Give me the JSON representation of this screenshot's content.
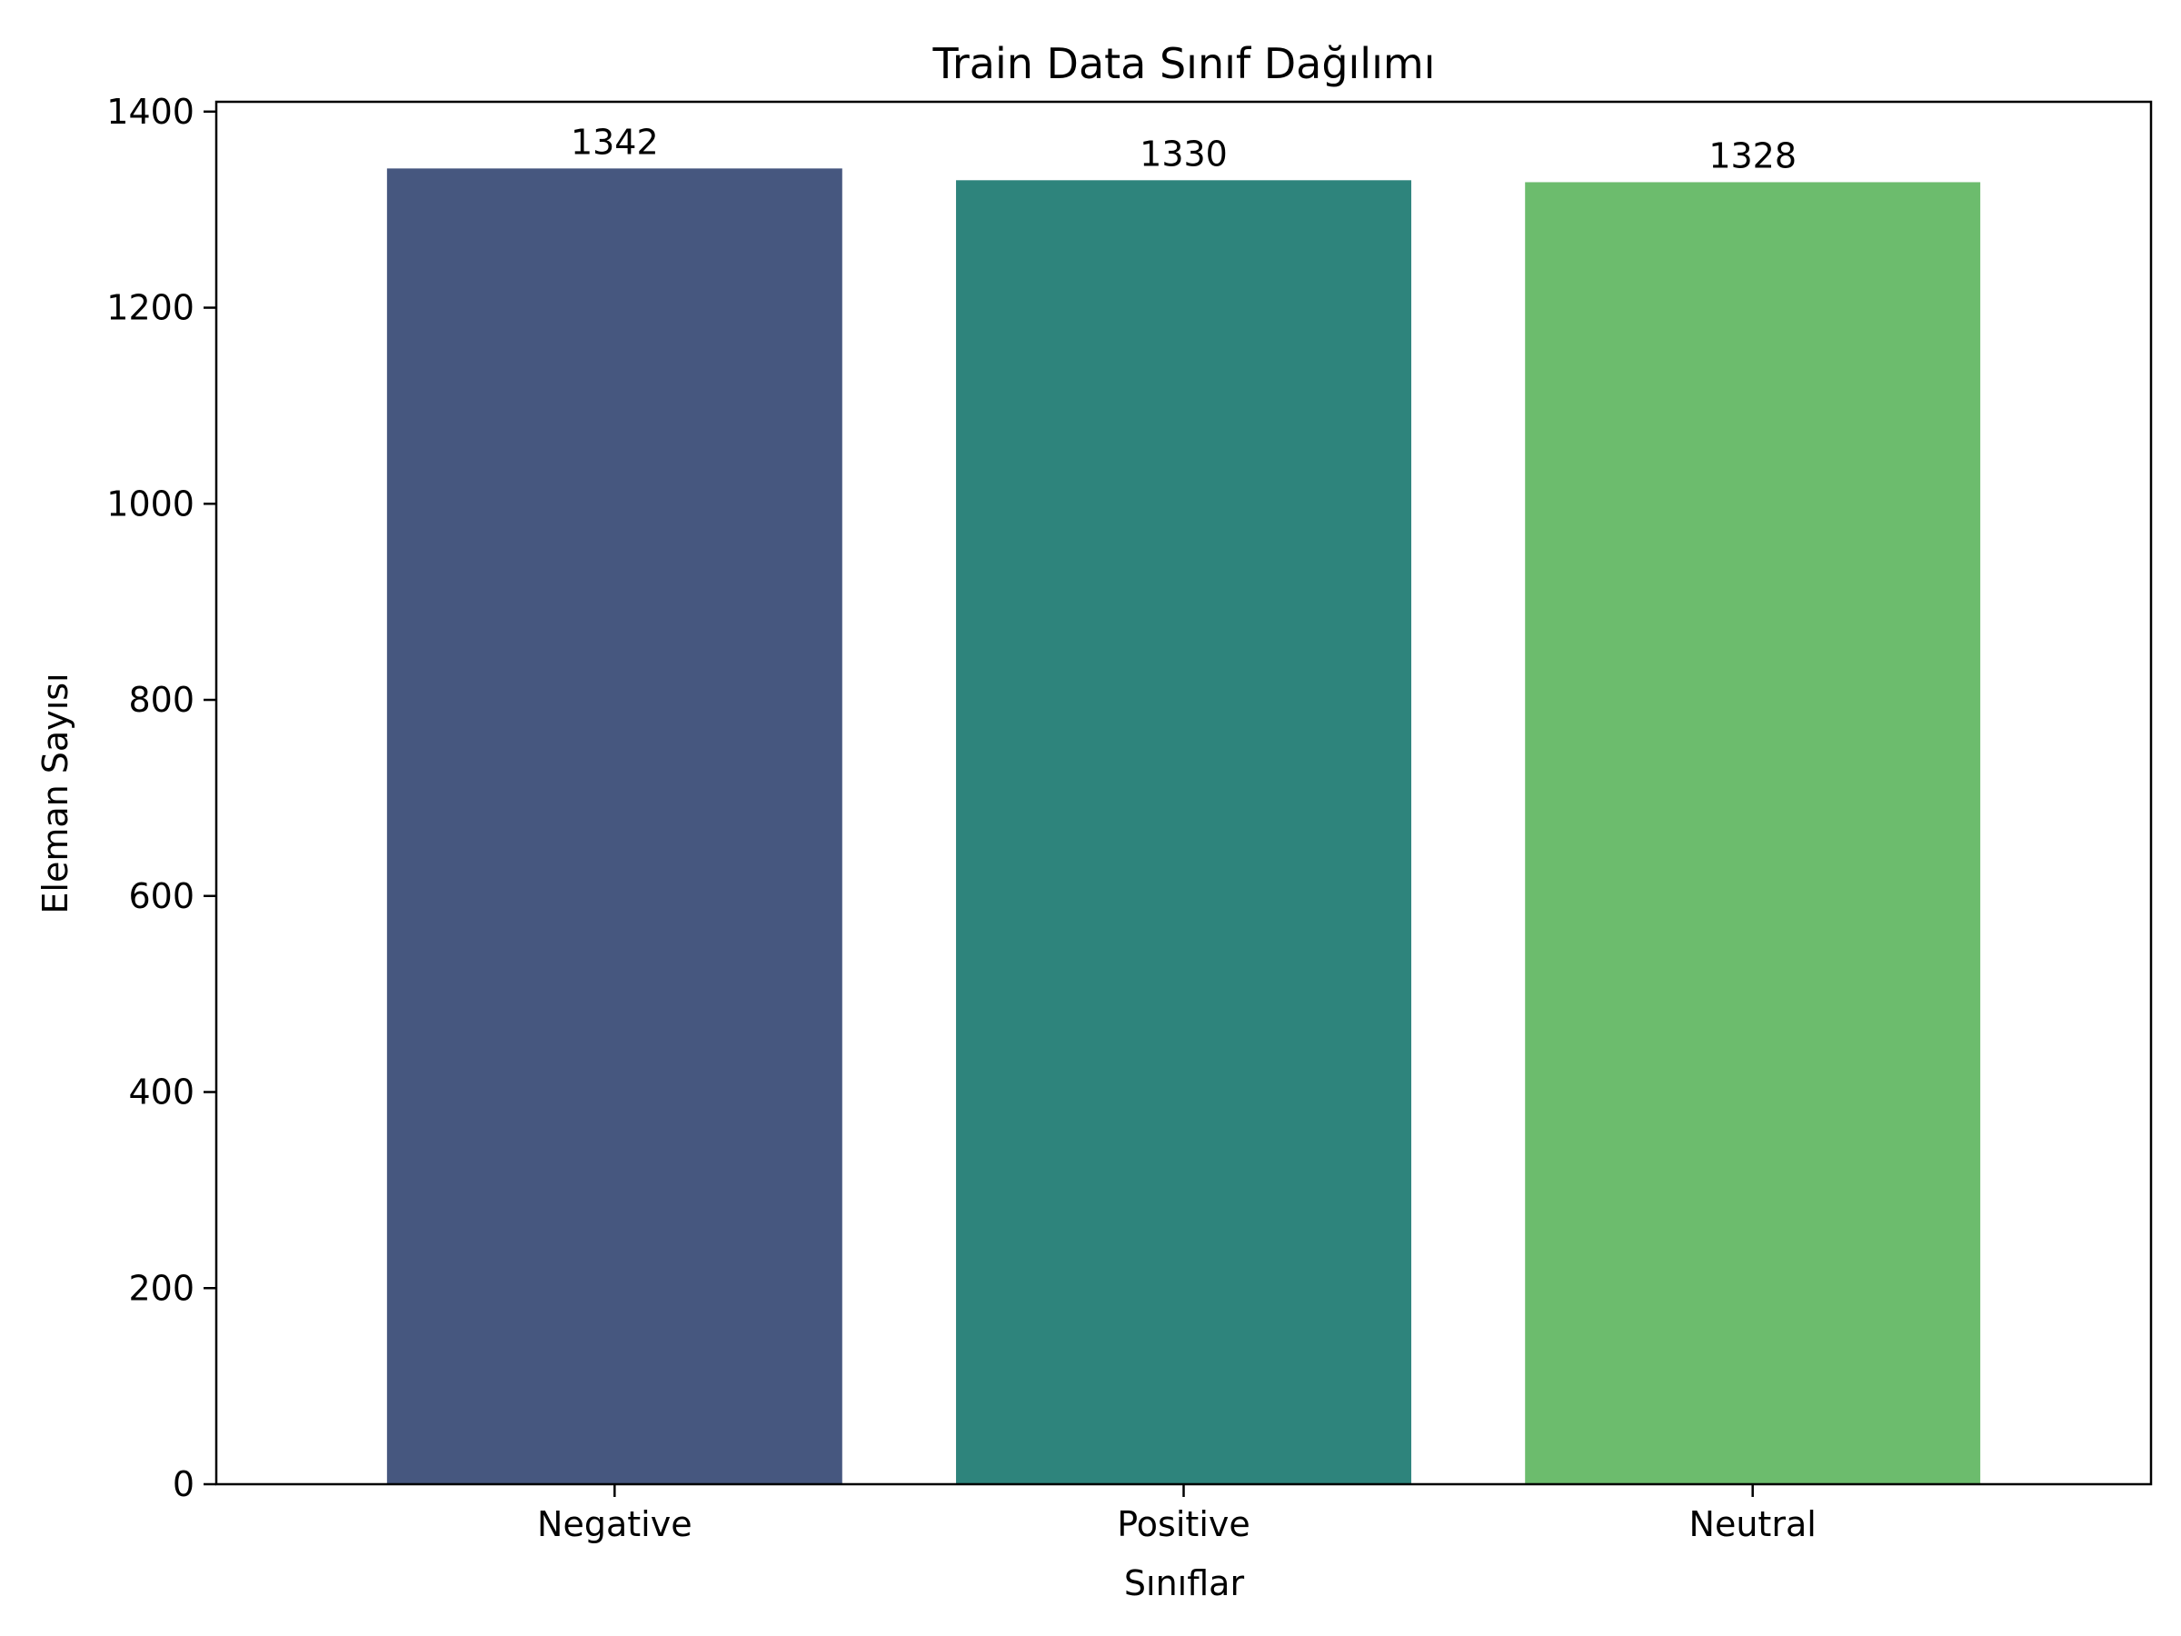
{
  "chart_data": {
    "type": "bar",
    "title": "Train Data Sınıf Dağılımı",
    "xlabel": "Sınıflar",
    "ylabel": "Eleman Sayısı",
    "categories": [
      "Negative",
      "Positive",
      "Neutral"
    ],
    "values": [
      1342,
      1330,
      1328
    ],
    "value_labels": [
      "1342",
      "1330",
      "1328"
    ],
    "colors": [
      "#46577f",
      "#2e847c",
      "#6cbc6d"
    ],
    "ylim": [
      0,
      1410
    ],
    "yticks": [
      0,
      200,
      400,
      600,
      800,
      1000,
      1200,
      1400
    ],
    "grid": false,
    "legend": "none"
  }
}
